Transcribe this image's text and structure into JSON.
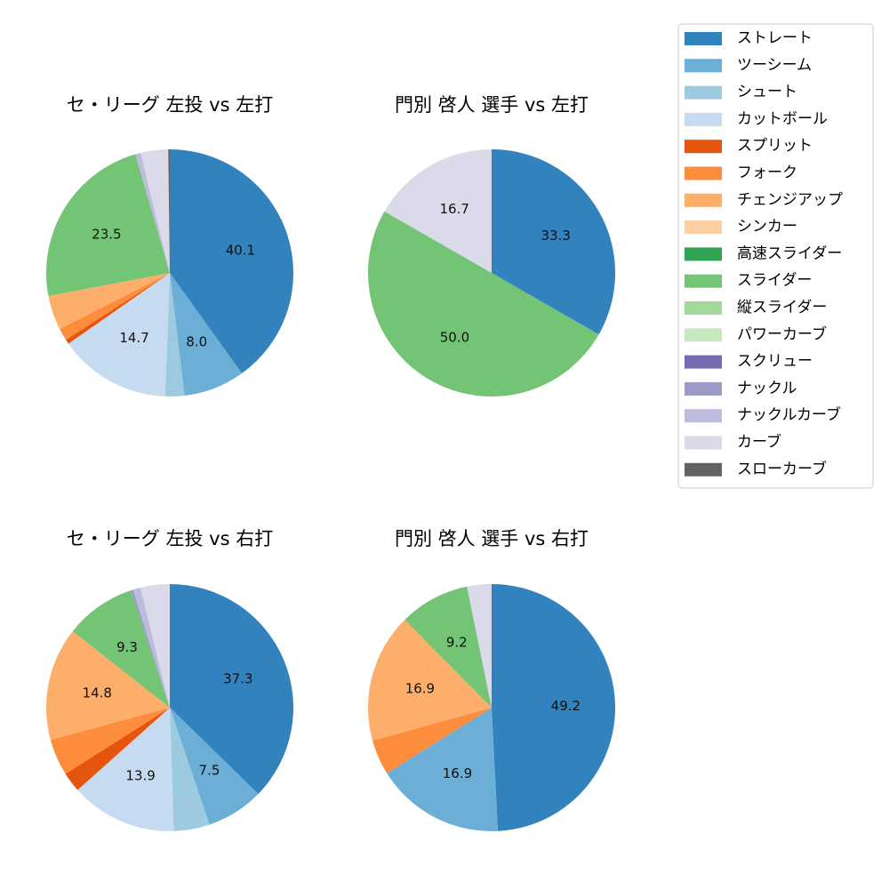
{
  "chart_data": [
    {
      "type": "pie",
      "title": "セ・リーグ 左投 vs 左打",
      "categories": [
        "ストレート",
        "ツーシーム",
        "シュート",
        "カットボール",
        "スプリット",
        "フォーク",
        "チェンジアップ",
        "スライダー",
        "ナックルカーブ",
        "カーブ",
        "スローカーブ"
      ],
      "values": [
        40.1,
        8.0,
        2.5,
        14.7,
        0.6,
        1.6,
        4.5,
        23.5,
        0.7,
        3.6,
        0.2
      ]
    },
    {
      "type": "pie",
      "title": "門別 啓人 選手 vs 左打",
      "categories": [
        "ストレート",
        "スライダー",
        "カーブ"
      ],
      "values": [
        33.3,
        50.0,
        16.7
      ]
    },
    {
      "type": "pie",
      "title": "セ・リーグ 左投 vs 右打",
      "categories": [
        "ストレート",
        "ツーシーム",
        "シュート",
        "カットボール",
        "スプリット",
        "フォーク",
        "チェンジアップ",
        "スライダー",
        "ナックル",
        "ナックルカーブ",
        "カーブ"
      ],
      "values": [
        37.3,
        7.5,
        4.7,
        13.9,
        2.6,
        4.8,
        14.8,
        9.3,
        0.3,
        1.0,
        3.8
      ]
    },
    {
      "type": "pie",
      "title": "門別 啓人 選手 vs 右打",
      "categories": [
        "ストレート",
        "ツーシーム",
        "フォーク",
        "チェンジアップ",
        "スライダー",
        "カーブ"
      ],
      "values": [
        49.2,
        16.9,
        4.6,
        16.9,
        9.2,
        3.2
      ]
    }
  ],
  "legend": {
    "placement": "top-right",
    "items": [
      {
        "label": "ストレート",
        "color": "#3182bd"
      },
      {
        "label": "ツーシーム",
        "color": "#6baed6"
      },
      {
        "label": "シュート",
        "color": "#9ecae1"
      },
      {
        "label": "カットボール",
        "color": "#c6dbef"
      },
      {
        "label": "スプリット",
        "color": "#e6550d"
      },
      {
        "label": "フォーク",
        "color": "#fd8d3c"
      },
      {
        "label": "チェンジアップ",
        "color": "#fdae6b"
      },
      {
        "label": "シンカー",
        "color": "#fdd0a2"
      },
      {
        "label": "高速スライダー",
        "color": "#31a354"
      },
      {
        "label": "スライダー",
        "color": "#74c476"
      },
      {
        "label": "縦スライダー",
        "color": "#a1d99b"
      },
      {
        "label": "パワーカーブ",
        "color": "#c7e9c0"
      },
      {
        "label": "スクリュー",
        "color": "#756bb1"
      },
      {
        "label": "ナックル",
        "color": "#9e9ac8"
      },
      {
        "label": "ナックルカーブ",
        "color": "#bcbddc"
      },
      {
        "label": "カーブ",
        "color": "#dadaeb"
      },
      {
        "label": "スローカーブ",
        "color": "#636363"
      }
    ]
  }
}
